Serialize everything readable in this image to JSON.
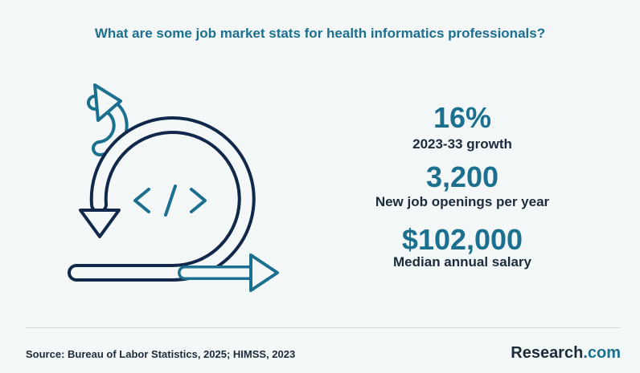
{
  "header": {
    "title": "What are some job market stats for health informatics professionals?"
  },
  "stats": [
    {
      "value": "16%",
      "label": "2023-33 growth"
    },
    {
      "value": "3,200",
      "label": "New job openings per year"
    },
    {
      "value": "$102,000",
      "label": "Median annual salary"
    }
  ],
  "footer": {
    "source": "Source:  Bureau of Labor Statistics, 2025; HIMSS, 2023",
    "brand": {
      "name": "Research",
      "suffix": ".com"
    }
  }
}
